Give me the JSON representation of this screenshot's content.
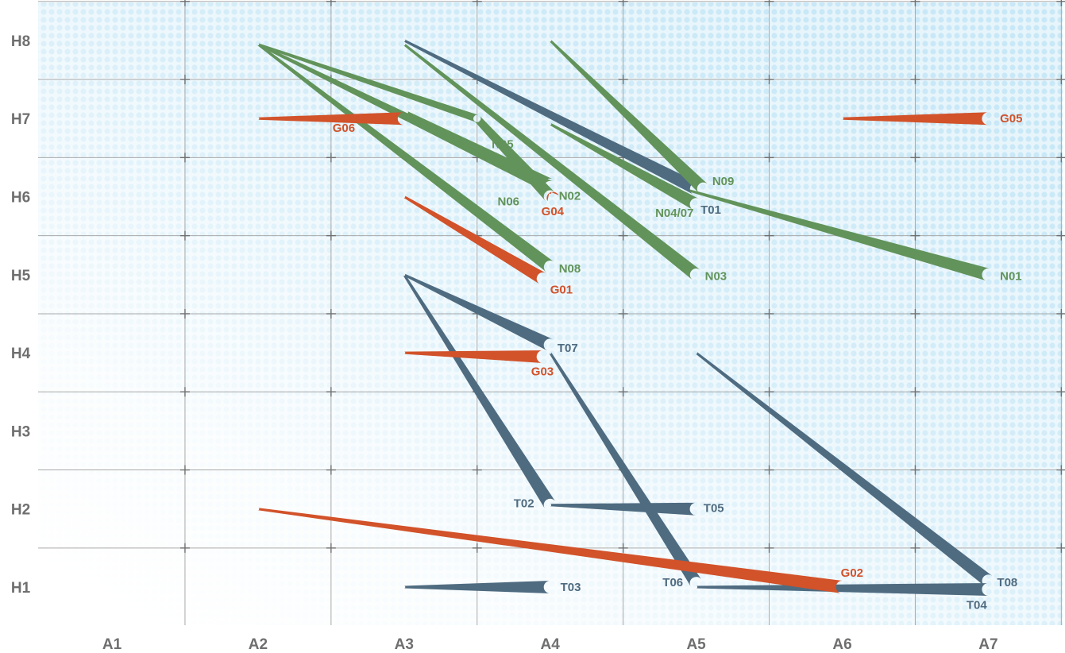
{
  "chart_data": {
    "type": "line",
    "title": "",
    "xlabel": "",
    "ylabel": "",
    "x_categories": [
      "A1",
      "A2",
      "A3",
      "A4",
      "A5",
      "A6",
      "A7"
    ],
    "y_categories": [
      "H1",
      "H2",
      "H3",
      "H4",
      "H5",
      "H6",
      "H7",
      "H8"
    ],
    "grid": true,
    "colors": {
      "green": "#62935a",
      "orange": "#d2522a",
      "slate": "#4f6b80",
      "background": "#c9e8f7",
      "tick": "#6f6f6f"
    },
    "series": [
      {
        "name": "N01",
        "color": "green",
        "points": [
          [
            4.95,
            6.08
          ],
          [
            7.0,
            5.0
          ]
        ]
      },
      {
        "name": "N02",
        "color": "green",
        "points": [
          [
            2.0,
            7.95
          ],
          [
            4.0,
            6.12
          ]
        ]
      },
      {
        "name": "N03",
        "color": "green",
        "points": [
          [
            3.0,
            7.95
          ],
          [
            5.0,
            5.0
          ]
        ]
      },
      {
        "name": "N04/07",
        "color": "green",
        "points": [
          [
            4.0,
            6.93
          ],
          [
            5.0,
            5.9
          ]
        ]
      },
      {
        "name": "N05",
        "color": "green",
        "points": [
          [
            3.02,
            7.08
          ],
          [
            4.0,
            6.15
          ]
        ]
      },
      {
        "name": "N06",
        "color": "green",
        "points": [
          [
            2.0,
            7.95
          ],
          [
            3.5,
            7.0
          ],
          [
            4.0,
            6.0
          ]
        ]
      },
      {
        "name": "N08",
        "color": "green",
        "points": [
          [
            2.0,
            7.95
          ],
          [
            4.0,
            5.1
          ]
        ]
      },
      {
        "name": "N09",
        "color": "green",
        "points": [
          [
            4.0,
            8.0
          ],
          [
            5.05,
            6.1
          ]
        ]
      },
      {
        "name": "T01",
        "color": "slate",
        "points": [
          [
            3.0,
            8.0
          ],
          [
            5.0,
            6.1
          ]
        ]
      },
      {
        "name": "T02",
        "color": "slate",
        "points": [
          [
            3.0,
            5.0
          ],
          [
            4.0,
            2.05
          ]
        ]
      },
      {
        "name": "T03",
        "color": "slate",
        "points": [
          [
            3.0,
            1.0
          ],
          [
            4.0,
            1.0
          ]
        ]
      },
      {
        "name": "T04",
        "color": "slate",
        "points": [
          [
            5.0,
            1.0
          ],
          [
            7.0,
            0.97
          ]
        ]
      },
      {
        "name": "T05",
        "color": "slate",
        "points": [
          [
            4.0,
            2.05
          ],
          [
            5.0,
            2.0
          ]
        ]
      },
      {
        "name": "T06",
        "color": "slate",
        "points": [
          [
            4.0,
            4.0
          ],
          [
            5.0,
            1.05
          ]
        ]
      },
      {
        "name": "T07",
        "color": "slate",
        "points": [
          [
            3.0,
            5.0
          ],
          [
            4.0,
            4.1
          ]
        ]
      },
      {
        "name": "T08",
        "color": "slate",
        "points": [
          [
            5.0,
            4.0
          ],
          [
            7.0,
            1.08
          ]
        ]
      },
      {
        "name": "G01",
        "color": "orange",
        "points": [
          [
            3.0,
            6.0
          ],
          [
            3.95,
            4.95
          ]
        ]
      },
      {
        "name": "G02",
        "color": "orange",
        "points": [
          [
            2.0,
            2.0
          ],
          [
            6.0,
            1.0
          ]
        ]
      },
      {
        "name": "G03",
        "color": "orange",
        "points": [
          [
            3.0,
            4.0
          ],
          [
            3.95,
            3.95
          ]
        ]
      },
      {
        "name": "G04",
        "color": "orange",
        "points": [
          [
            4.0,
            6.05
          ],
          [
            4.02,
            5.98
          ]
        ]
      },
      {
        "name": "G05",
        "color": "orange",
        "points": [
          [
            6.0,
            7.0
          ],
          [
            7.0,
            7.0
          ]
        ]
      },
      {
        "name": "G06",
        "color": "orange",
        "points": [
          [
            2.0,
            7.0
          ],
          [
            3.0,
            7.0
          ]
        ]
      }
    ],
    "labels": [
      {
        "text": "N01",
        "color": "green",
        "x": 7.08,
        "y": 4.93,
        "anchor": "start"
      },
      {
        "text": "N02",
        "color": "green",
        "x": 4.06,
        "y": 5.96,
        "anchor": "start"
      },
      {
        "text": "N03",
        "color": "green",
        "x": 5.06,
        "y": 4.93,
        "anchor": "start"
      },
      {
        "text": "N04/07",
        "color": "green",
        "x": 4.72,
        "y": 5.74,
        "anchor": "start"
      },
      {
        "text": "N05",
        "color": "green",
        "x": 3.6,
        "y": 6.62,
        "anchor": "start"
      },
      {
        "text": "N06",
        "color": "green",
        "x": 3.64,
        "y": 5.89,
        "anchor": "start"
      },
      {
        "text": "N08",
        "color": "green",
        "x": 4.06,
        "y": 5.03,
        "anchor": "start"
      },
      {
        "text": "N09",
        "color": "green",
        "x": 5.11,
        "y": 6.15,
        "anchor": "start"
      },
      {
        "text": "T01",
        "color": "slate",
        "x": 5.03,
        "y": 5.78,
        "anchor": "start"
      },
      {
        "text": "T02",
        "color": "slate",
        "x": 3.75,
        "y": 2.02,
        "anchor": "start"
      },
      {
        "text": "T03",
        "color": "slate",
        "x": 4.07,
        "y": 0.95,
        "anchor": "start"
      },
      {
        "text": "T04",
        "color": "slate",
        "x": 6.85,
        "y": 0.72,
        "anchor": "start"
      },
      {
        "text": "T05",
        "color": "slate",
        "x": 5.05,
        "y": 1.96,
        "anchor": "start"
      },
      {
        "text": "T06",
        "color": "slate",
        "x": 4.77,
        "y": 1.01,
        "anchor": "start"
      },
      {
        "text": "T07",
        "color": "slate",
        "x": 4.05,
        "y": 4.01,
        "anchor": "start"
      },
      {
        "text": "T08",
        "color": "slate",
        "x": 7.06,
        "y": 1.01,
        "anchor": "start"
      },
      {
        "text": "G01",
        "color": "orange",
        "x": 4.0,
        "y": 4.76,
        "anchor": "start"
      },
      {
        "text": "G02",
        "color": "orange",
        "x": 5.99,
        "y": 1.13,
        "anchor": "start"
      },
      {
        "text": "G03",
        "color": "orange",
        "x": 3.87,
        "y": 3.71,
        "anchor": "start"
      },
      {
        "text": "G04",
        "color": "orange",
        "x": 3.94,
        "y": 5.76,
        "anchor": "start"
      },
      {
        "text": "G05",
        "color": "orange",
        "x": 7.08,
        "y": 6.95,
        "anchor": "start"
      },
      {
        "text": "G06",
        "color": "orange",
        "x": 2.51,
        "y": 6.83,
        "anchor": "start"
      }
    ]
  }
}
